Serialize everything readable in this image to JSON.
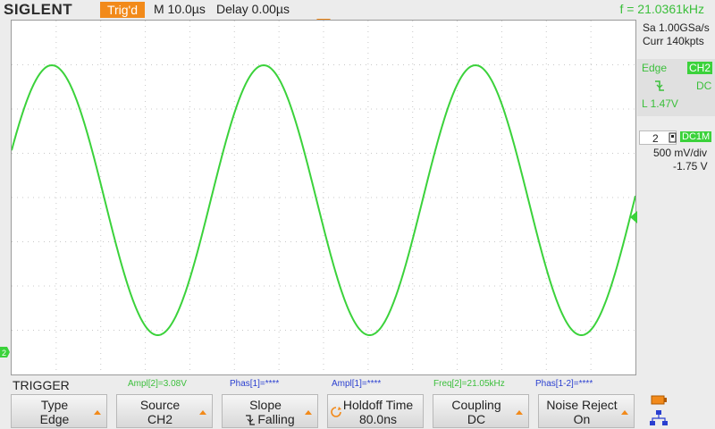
{
  "header": {
    "brand": "SIGLENT",
    "trig_status": "Trig'd",
    "timebase": "M 10.0µs",
    "delay": "Delay 0.00µs",
    "frequency": "f = 21.0361kHz"
  },
  "acquisition": {
    "sample_rate": "Sa 1.00GSa/s",
    "memory": "Curr 140kpts"
  },
  "trigger_panel": {
    "type": "Edge",
    "source": "CH2",
    "slope_icon": "falling-edge-icon",
    "coupling": "DC",
    "level": "L  1.47V"
  },
  "channel": {
    "number": "2",
    "coupling_impedance": "DC1M",
    "scale": "500 mV/div",
    "offset": "-1.75 V",
    "color": "#3bd23b"
  },
  "colors": {
    "accent": "#f28a1a",
    "trace": "#3bd23b",
    "measure_blue": "#2a3fd0"
  },
  "menu_title": "TRIGGER",
  "measurements": [
    {
      "text": "Ampl[2]=3.08V",
      "color": "#3bbf3b"
    },
    {
      "text": "Phas[1]=****",
      "color": "#2a3fd0"
    },
    {
      "text": "Ampl[1]=****",
      "color": "#2a3fd0"
    },
    {
      "text": "Freq[2]=21.05kHz",
      "color": "#3bbf3b"
    },
    {
      "text": "Phas[1-2]=****",
      "color": "#2a3fd0"
    }
  ],
  "softkeys": [
    {
      "title": "Type",
      "value": "Edge"
    },
    {
      "title": "Source",
      "value": "CH2"
    },
    {
      "title": "Slope",
      "value": "Falling"
    },
    {
      "title": "Holdoff Time",
      "value": "80.0ns"
    },
    {
      "title": "Coupling",
      "value": "DC"
    },
    {
      "title": "Noise Reject",
      "value": "On"
    }
  ],
  "waveform": {
    "frequency_khz": 21.0361,
    "amplitude_v": 3.08,
    "offset_v": -1.75
  }
}
